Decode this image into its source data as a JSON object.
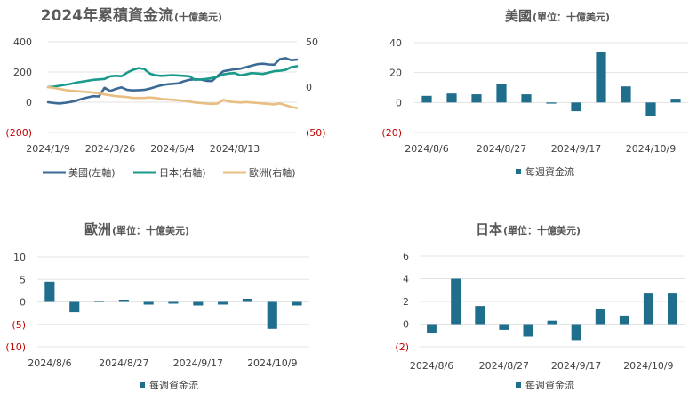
{
  "chart_data": [
    {
      "type": "line",
      "title": "2024年累積資金流",
      "title_suffix": "(十億美元)",
      "x_ticks": [
        "2024/1/9",
        "2024/3/26",
        "2024/6/4",
        "2024/8/13"
      ],
      "y_left_ticks": [
        "400",
        "200",
        "0",
        "(200)"
      ],
      "y_right_ticks": [
        "50",
        "0",
        "(50)"
      ],
      "ylim_left": [
        -200,
        400
      ],
      "ylim_right": [
        -50,
        50
      ],
      "grid": true,
      "legend_position": "bottom",
      "series": [
        {
          "name": "美國(左軸)",
          "axis": "left",
          "color": "#3a6a95",
          "values": [
            0,
            -5,
            -8,
            -4,
            2,
            10,
            22,
            32,
            40,
            38,
            95,
            75,
            88,
            98,
            82,
            78,
            80,
            82,
            90,
            102,
            112,
            118,
            122,
            125,
            138,
            148,
            152,
            150,
            142,
            140,
            175,
            205,
            212,
            218,
            222,
            232,
            242,
            252,
            255,
            250,
            248,
            285,
            292,
            278,
            282
          ]
        },
        {
          "name": "日本(右軸)",
          "axis": "right",
          "color": "#1a9a8a",
          "values": [
            0,
            0.5,
            1.5,
            2.5,
            3.5,
            5,
            6,
            7,
            8,
            8.5,
            9,
            12,
            12.5,
            12,
            16,
            19,
            21,
            20,
            15,
            13,
            12.5,
            12.8,
            13.2,
            12.8,
            12.5,
            12,
            8,
            8.5,
            9,
            10,
            11.5,
            14,
            15,
            15.5,
            13,
            14,
            15.5,
            15,
            14.5,
            16,
            17.5,
            18,
            19,
            22,
            23
          ]
        },
        {
          "name": "歐洲(右軸)",
          "axis": "right",
          "color": "#e8be82",
          "values": [
            0,
            -1,
            -2,
            -3,
            -4,
            -4.5,
            -5,
            -5.5,
            -6,
            -7,
            -8,
            -9,
            -10,
            -10.5,
            -11,
            -12,
            -12,
            -12,
            -11.5,
            -12,
            -13,
            -13.5,
            -14,
            -14.5,
            -15,
            -16,
            -17,
            -17.5,
            -18,
            -18.5,
            -18,
            -14,
            -16,
            -16.5,
            -17,
            -16.5,
            -17,
            -17.5,
            -18,
            -18.5,
            -19,
            -18,
            -20,
            -22,
            -23
          ]
        }
      ]
    },
    {
      "type": "bar",
      "title": "美國",
      "title_suffix": "(單位：十億美元)",
      "values": [
        4.5,
        6,
        5.5,
        12.5,
        5.5,
        -0.8,
        -5.8,
        34,
        10.8,
        -9.2,
        2.5
      ],
      "ylim": [
        -20,
        40
      ],
      "y_ticks": [
        "40",
        "20",
        "0",
        "(20)"
      ],
      "x_ticks": [
        "2024/8/6",
        "2024/8/27",
        "2024/9/17",
        "2024/10/9"
      ],
      "legend": "每週資金流",
      "grid": true,
      "color": "#1f6e8c"
    },
    {
      "type": "bar",
      "title": "歐洲",
      "title_suffix": "(單位：十億美元)",
      "values": [
        4.5,
        -2.3,
        0.2,
        0.5,
        -0.6,
        -0.4,
        -0.8,
        -0.6,
        0.7,
        -6,
        -0.8
      ],
      "ylim": [
        -10,
        10
      ],
      "y_ticks": [
        "10",
        "5",
        "0",
        "(5)",
        "(10)"
      ],
      "x_ticks": [
        "2024/8/6",
        "2024/8/27",
        "2024/9/17",
        "2024/10/9"
      ],
      "legend": "每週資金流",
      "grid": true,
      "color": "#1f6e8c"
    },
    {
      "type": "bar",
      "title": "日本",
      "title_suffix": "(單位：十億美元)",
      "values": [
        -0.8,
        4,
        1.6,
        -0.5,
        -1.1,
        0.3,
        -1.4,
        1.35,
        0.75,
        2.7,
        2.7
      ],
      "ylim": [
        -2,
        6
      ],
      "y_ticks": [
        "6",
        "4",
        "2",
        "0",
        "(2)"
      ],
      "x_ticks": [
        "2024/8/6",
        "2024/8/27",
        "2024/9/17",
        "2024/10/9"
      ],
      "legend": "每週資金流",
      "grid": true,
      "color": "#1f6e8c"
    }
  ]
}
